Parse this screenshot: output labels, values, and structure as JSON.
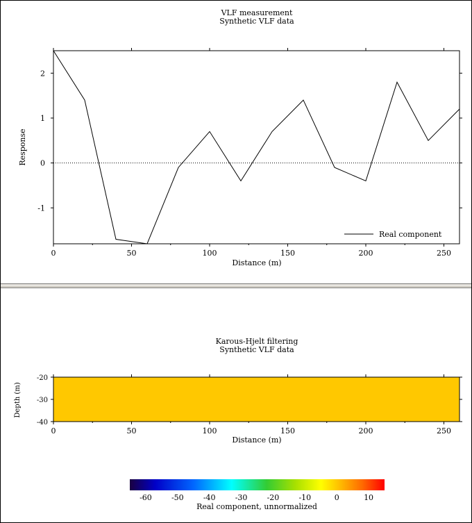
{
  "colors": {
    "border": "#000000",
    "divider_light": "#ffffff",
    "divider_dark": "#808080",
    "divider_face": "#d4d0c8",
    "line": "#000000",
    "fill": "#ffc800"
  },
  "chart_data": [
    {
      "type": "line",
      "title": "VLF measurement",
      "subtitle": "Synthetic VLF data",
      "xlabel": "Distance (m)",
      "ylabel": "Response",
      "xlim": [
        0,
        260
      ],
      "ylim": [
        -1.8,
        2.5
      ],
      "xticks": [
        0,
        50,
        100,
        150,
        200,
        250
      ],
      "xtick_labels": [
        "0",
        "50",
        "100",
        "150",
        "200",
        "250"
      ],
      "yticks": [
        2,
        1,
        0,
        -1
      ],
      "ytick_labels": [
        "2",
        "1",
        "0",
        "-1"
      ],
      "zero_line": "dotted",
      "legend_position": "bottom-right",
      "series": [
        {
          "name": "Real component",
          "x": [
            0,
            20,
            40,
            60,
            80,
            100,
            120,
            140,
            160,
            180,
            200,
            220,
            240,
            260
          ],
          "y": [
            2.5,
            1.4,
            -1.7,
            -1.8,
            -0.1,
            0.7,
            -0.4,
            0.7,
            1.4,
            -0.1,
            -0.4,
            1.8,
            0.5,
            1.2
          ]
        }
      ]
    },
    {
      "type": "heatmap",
      "title": "Karous-Hjelt filtering",
      "subtitle": "Synthetic VLF data",
      "xlabel": "Distance (m)",
      "ylabel": "Depth (m)",
      "xlim": [
        0,
        260
      ],
      "ylim": [
        -40,
        -20
      ],
      "xticks": [
        0,
        50,
        100,
        150,
        200,
        250
      ],
      "xtick_labels": [
        "0",
        "50",
        "100",
        "150",
        "200",
        "250"
      ],
      "yticks": [
        -20,
        -30,
        -40
      ],
      "ytick_labels": [
        "-20",
        "-30",
        "-40"
      ],
      "fill_value": 0,
      "colorbar": {
        "label": "Real component, unnormalized",
        "range": [
          -65,
          15
        ],
        "ticks": [
          -60,
          -50,
          -40,
          -30,
          -20,
          -10,
          0,
          10
        ],
        "tick_labels": [
          "-60",
          "-50",
          "-40",
          "-30",
          "-20",
          "-10",
          "0",
          "10"
        ],
        "stops": [
          {
            "v": -65,
            "c": "#1a0040"
          },
          {
            "v": -57,
            "c": "#0000c8"
          },
          {
            "v": -45,
            "c": "#0066ff"
          },
          {
            "v": -33,
            "c": "#00ffff"
          },
          {
            "v": -22,
            "c": "#33cc33"
          },
          {
            "v": -13,
            "c": "#a8e000"
          },
          {
            "v": -5,
            "c": "#ffff00"
          },
          {
            "v": 0,
            "c": "#ffc800"
          },
          {
            "v": 8,
            "c": "#ff6a00"
          },
          {
            "v": 15,
            "c": "#ff0000"
          }
        ]
      }
    }
  ]
}
